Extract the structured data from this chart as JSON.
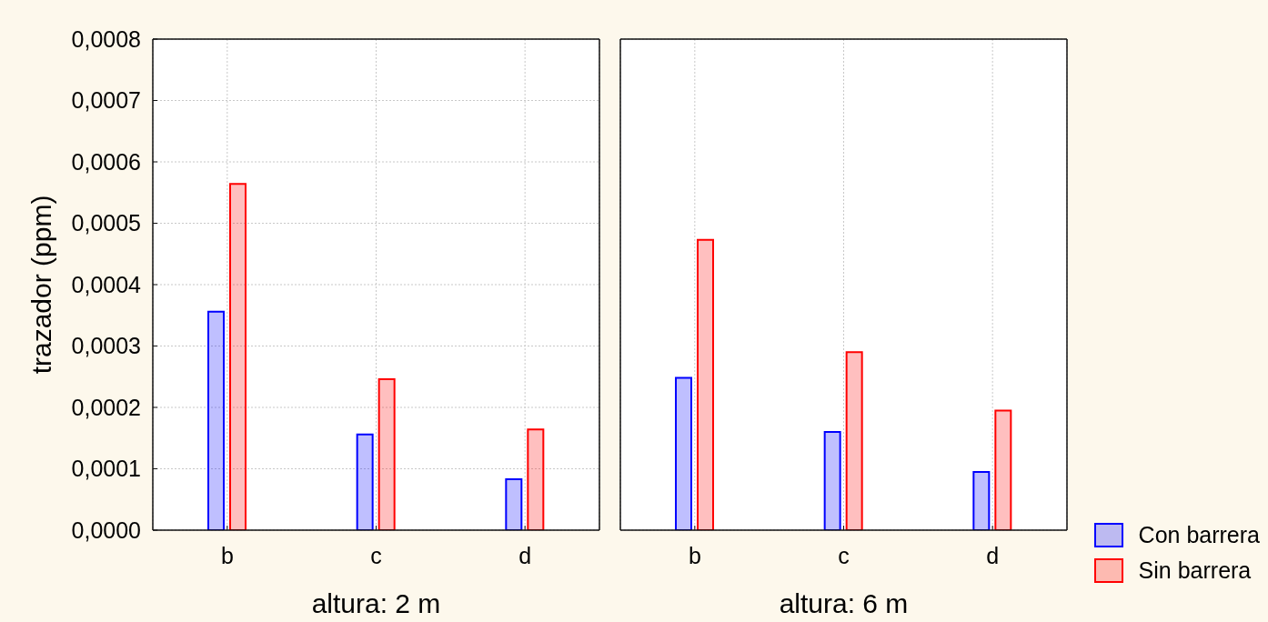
{
  "chart_data": [
    {
      "type": "bar",
      "xlabel": "altura: 2 m",
      "ylabel": "trazador (ppm)",
      "categories": [
        "b",
        "c",
        "d"
      ],
      "series": [
        {
          "color": "#0000ff",
          "values": [
            0.000356,
            0.000156,
            8.3e-05
          ]
        },
        {
          "color": "#ff0000",
          "values": [
            0.000564,
            0.000246,
            0.000164
          ]
        }
      ],
      "ylim": [
        0,
        0.0008
      ],
      "yticks": [
        {
          "value": 0,
          "label": "0,0000"
        },
        {
          "value": 0.0001,
          "label": "0,0001"
        },
        {
          "value": 0.0002,
          "label": "0,0002"
        },
        {
          "value": 0.0003,
          "label": "0,0003"
        },
        {
          "value": 0.0004,
          "label": "0,0004"
        },
        {
          "value": 0.0005,
          "label": "0,0005"
        },
        {
          "value": 0.0006,
          "label": "0,0006"
        },
        {
          "value": 0.0007,
          "label": "0,0007"
        },
        {
          "value": 0.0008,
          "label": "0,0008"
        }
      ],
      "grid": true
    },
    {
      "type": "bar",
      "xlabel": "altura: 6 m",
      "categories": [
        "b",
        "c",
        "d"
      ],
      "series": [
        {
          "name": "Con barrera",
          "color": "#0000ff",
          "values": [
            0.000248,
            0.00016,
            9.5e-05
          ]
        },
        {
          "name": "Sin barrera",
          "color": "#ff0000",
          "values": [
            0.000473,
            0.00029,
            0.000195
          ]
        }
      ],
      "ylim": [
        0,
        0.0008
      ],
      "yticks": [
        {
          "value": 0,
          "label": null
        },
        {
          "value": 0.0001,
          "label": null
        },
        {
          "value": 0.0002,
          "label": null
        },
        {
          "value": 0.0003,
          "label": null
        },
        {
          "value": 0.0004,
          "label": null
        },
        {
          "value": 0.0005,
          "label": null
        },
        {
          "value": 0.0006,
          "label": null
        },
        {
          "value": 0.0007,
          "label": null
        },
        {
          "value": 0.0008,
          "label": null
        }
      ],
      "tick_labels": "x",
      "grid": true,
      "legend": "bottom right"
    }
  ]
}
